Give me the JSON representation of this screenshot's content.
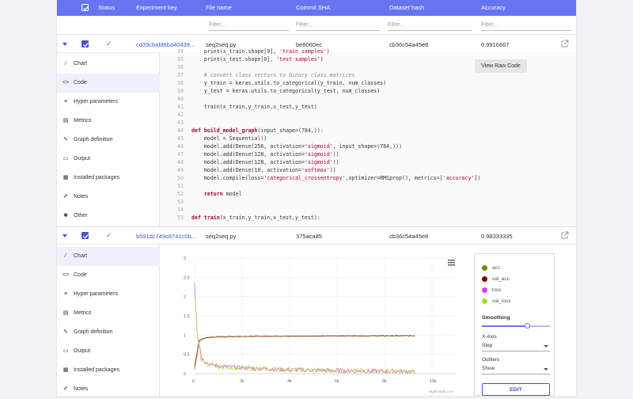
{
  "header": {
    "columns": [
      "Status",
      "Experiment key",
      "File name",
      "Commit SHA",
      "Dataset hash",
      "Accuracy"
    ]
  },
  "filters": {
    "placeholder": "Filter..."
  },
  "experiments": [
    {
      "key": "cd39cbafd6ba40439...",
      "file": "seq2seq.py",
      "commit": "be8060ec",
      "dataset": "cb36c54a45e8",
      "accuracy": "0.9916667",
      "status": "✓"
    },
    {
      "key": "b591dc749c8741c0b...",
      "file": "seq2seq.py",
      "commit": "375aca85",
      "dataset": "cb36c54a45e8",
      "accuracy": "0.98333335",
      "status": "✓"
    }
  ],
  "sidebar": {
    "items": [
      {
        "icon": "chart-icon",
        "glyph": "⁄",
        "label": "Chart"
      },
      {
        "icon": "code-icon",
        "glyph": "<>",
        "label": "Code"
      },
      {
        "icon": "hyperparameters-icon",
        "glyph": "≡",
        "label": "Hyper parameters"
      },
      {
        "icon": "metrics-icon",
        "glyph": "▤",
        "label": "Metrics"
      },
      {
        "icon": "graph-icon",
        "glyph": "✎",
        "label": "Graph definition"
      },
      {
        "icon": "output-icon",
        "glyph": "▭",
        "label": "Output"
      },
      {
        "icon": "packages-icon",
        "glyph": "▦",
        "label": "Installed packages"
      },
      {
        "icon": "notes-icon",
        "glyph": "✐",
        "label": "Notes"
      },
      {
        "icon": "other-icon",
        "glyph": "✱",
        "label": "Other"
      }
    ]
  },
  "code": {
    "raw_button": "View Raw Code",
    "lines": [
      {
        "n": "34",
        "t": "    print(x_train.shape[0], 'train samples')"
      },
      {
        "n": "35",
        "t": "    print(x_test.shape[0], 'test samples')"
      },
      {
        "n": "36",
        "t": ""
      },
      {
        "n": "37",
        "t": "    # convert class vectors to binary class matrices"
      },
      {
        "n": "38",
        "t": "    y_train = keras.utils.to_categorical(y_train, num_classes)"
      },
      {
        "n": "39",
        "t": "    y_test = keras.utils.to_categorical(y_test, num_classes)"
      },
      {
        "n": "40",
        "t": ""
      },
      {
        "n": "41",
        "t": "    train(x_train,y_train,x_test,y_test)"
      },
      {
        "n": "42",
        "t": ""
      },
      {
        "n": "43",
        "t": ""
      },
      {
        "n": "44",
        "t": "def build_model_graph(input_shape=(784,)):"
      },
      {
        "n": "45",
        "t": "    model = Sequential()"
      },
      {
        "n": "46",
        "t": "    model.add(Dense(256, activation='sigmoid', input_shape=(784,)))"
      },
      {
        "n": "47",
        "t": "    model.add(Dense(128, activation='sigmoid'))"
      },
      {
        "n": "48",
        "t": "    model.add(Dense(128, activation='sigmoid'))"
      },
      {
        "n": "49",
        "t": "    model.add(Dense(10, activation='softmax'))"
      },
      {
        "n": "50",
        "t": "    model.compile(loss='categorical_crossentropy',optimizer=RMSprop(), metrics=['accuracy'])"
      },
      {
        "n": "51",
        "t": ""
      },
      {
        "n": "52",
        "t": "    return model"
      },
      {
        "n": "53",
        "t": ""
      },
      {
        "n": "54",
        "t": ""
      },
      {
        "n": "55",
        "t": "def train(x_train,y_train,x_test,y_test):"
      }
    ]
  },
  "chart_panel": {
    "legend": [
      {
        "label": "acc",
        "color": "#808000"
      },
      {
        "label": "val_acc",
        "color": "#800000"
      },
      {
        "label": "loss",
        "color": "#e040e0"
      },
      {
        "label": "val_loss",
        "color": "#a0e020"
      }
    ],
    "smoothing_label": "Smoothing",
    "xaxis_label": "X-Axis",
    "xaxis_value": "Step",
    "outliers_label": "Outliers",
    "outliers_value": "Show",
    "edit_button": "EDIT",
    "credit": "Highcharts.com"
  },
  "chart_data": {
    "type": "line",
    "title": "",
    "xlabel": "Step",
    "ylabel": "",
    "x_ticks": [
      "0",
      "2k",
      "4k",
      "6k",
      "8k",
      "10k"
    ],
    "y_ticks": [
      "0",
      "0.5",
      "1",
      "1.5",
      "2",
      "2.5",
      "3"
    ],
    "xlim": [
      0,
      11000
    ],
    "ylim": [
      0,
      3
    ],
    "grid": true,
    "legend_position": "right-panel",
    "series": [
      {
        "name": "acc",
        "x": [
          0,
          200,
          500,
          1000,
          2000,
          4000,
          6000,
          8000,
          9300
        ],
        "values": [
          0.1,
          0.85,
          0.93,
          0.95,
          0.96,
          0.97,
          0.98,
          0.98,
          0.98
        ]
      },
      {
        "name": "val_acc",
        "x": [
          0,
          200,
          500,
          1000,
          2000,
          4000,
          6000,
          8000,
          9300
        ],
        "values": [
          0.2,
          0.88,
          0.94,
          0.96,
          0.97,
          0.975,
          0.98,
          0.985,
          0.985
        ]
      },
      {
        "name": "loss",
        "x": [
          0,
          100,
          300,
          600,
          1000,
          2000,
          4000,
          6000,
          8000,
          9300
        ],
        "values": [
          2.4,
          1.2,
          0.4,
          0.25,
          0.2,
          0.15,
          0.1,
          0.08,
          0.06,
          0.05
        ]
      },
      {
        "name": "val_loss",
        "x": [
          0,
          100,
          300,
          600,
          1000,
          2000,
          4000,
          6000,
          8000,
          9300
        ],
        "values": [
          2.2,
          1.0,
          0.35,
          0.22,
          0.18,
          0.14,
          0.1,
          0.08,
          0.07,
          0.06
        ]
      }
    ]
  }
}
